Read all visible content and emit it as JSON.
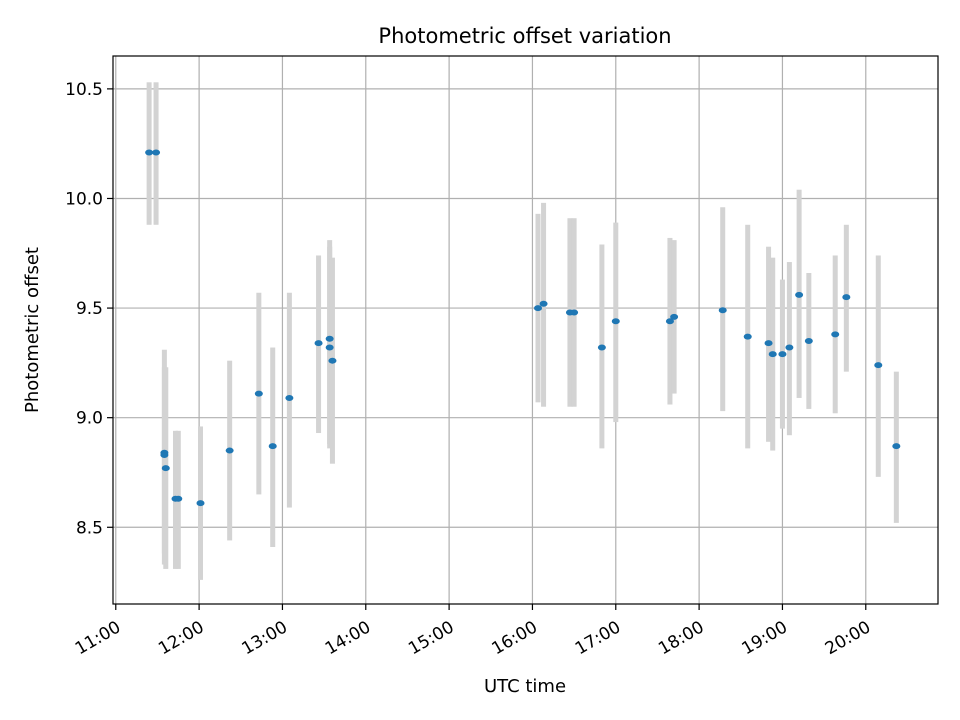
{
  "chart_data": {
    "type": "scatter",
    "title": "Photometric offset variation",
    "xlabel": "UTC time",
    "ylabel": "Photometric offset",
    "xlim": [
      "10:58",
      "20:52"
    ],
    "ylim": [
      8.15,
      10.65
    ],
    "x_ticks": [
      "11:00",
      "12:00",
      "13:00",
      "14:00",
      "15:00",
      "16:00",
      "17:00",
      "18:00",
      "19:00",
      "20:00"
    ],
    "y_ticks": [
      8.5,
      9.0,
      9.5,
      10.0,
      10.5
    ],
    "y_tick_labels": [
      "8.5",
      "9.0",
      "9.5",
      "10.0",
      "10.5"
    ],
    "grid": true,
    "colors": {
      "marker": "#1f77b4",
      "errorbar": "#d3d3d3",
      "grid": "#b0b0b0"
    },
    "series": [
      {
        "marker": "point",
        "error_bars": "vertical",
        "points": [
          {
            "x": "11:24",
            "y": 10.21,
            "lo": 9.88,
            "hi": 10.53
          },
          {
            "x": "11:29",
            "y": 10.21,
            "lo": 9.88,
            "hi": 10.53
          },
          {
            "x": "11:35",
            "y": 8.84,
            "lo": 8.38,
            "hi": 9.31
          },
          {
            "x": "11:35",
            "y": 8.83,
            "lo": 8.33,
            "hi": 9.23
          },
          {
            "x": "11:36",
            "y": 8.77,
            "lo": 8.31,
            "hi": 9.23
          },
          {
            "x": "11:43",
            "y": 8.63,
            "lo": 8.31,
            "hi": 8.94
          },
          {
            "x": "11:45",
            "y": 8.63,
            "lo": 8.31,
            "hi": 8.94
          },
          {
            "x": "12:01",
            "y": 8.61,
            "lo": 8.26,
            "hi": 8.96
          },
          {
            "x": "12:22",
            "y": 8.85,
            "lo": 8.44,
            "hi": 9.26
          },
          {
            "x": "12:43",
            "y": 9.11,
            "lo": 8.65,
            "hi": 9.57
          },
          {
            "x": "12:53",
            "y": 8.87,
            "lo": 8.41,
            "hi": 9.32
          },
          {
            "x": "13:05",
            "y": 9.09,
            "lo": 8.59,
            "hi": 9.57
          },
          {
            "x": "13:26",
            "y": 9.34,
            "lo": 8.93,
            "hi": 9.74
          },
          {
            "x": "13:34",
            "y": 9.36,
            "lo": 8.88,
            "hi": 9.81
          },
          {
            "x": "13:34",
            "y": 9.32,
            "lo": 8.86,
            "hi": 9.78
          },
          {
            "x": "13:36",
            "y": 9.26,
            "lo": 8.79,
            "hi": 9.73
          },
          {
            "x": "16:04",
            "y": 9.5,
            "lo": 9.07,
            "hi": 9.93
          },
          {
            "x": "16:08",
            "y": 9.52,
            "lo": 9.05,
            "hi": 9.98
          },
          {
            "x": "16:27",
            "y": 9.48,
            "lo": 9.05,
            "hi": 9.91
          },
          {
            "x": "16:30",
            "y": 9.48,
            "lo": 9.05,
            "hi": 9.91
          },
          {
            "x": "16:50",
            "y": 9.32,
            "lo": 8.86,
            "hi": 9.79
          },
          {
            "x": "17:00",
            "y": 9.44,
            "lo": 8.98,
            "hi": 9.89
          },
          {
            "x": "17:39",
            "y": 9.44,
            "lo": 9.06,
            "hi": 9.82
          },
          {
            "x": "17:42",
            "y": 9.46,
            "lo": 9.11,
            "hi": 9.81
          },
          {
            "x": "18:17",
            "y": 9.49,
            "lo": 9.03,
            "hi": 9.96
          },
          {
            "x": "18:35",
            "y": 9.37,
            "lo": 8.86,
            "hi": 9.88
          },
          {
            "x": "18:50",
            "y": 9.34,
            "lo": 8.89,
            "hi": 9.78
          },
          {
            "x": "18:53",
            "y": 9.29,
            "lo": 8.85,
            "hi": 9.73
          },
          {
            "x": "19:00",
            "y": 9.29,
            "lo": 8.95,
            "hi": 9.63
          },
          {
            "x": "19:05",
            "y": 9.32,
            "lo": 8.92,
            "hi": 9.71
          },
          {
            "x": "19:12",
            "y": 9.56,
            "lo": 9.09,
            "hi": 10.04
          },
          {
            "x": "19:19",
            "y": 9.35,
            "lo": 9.04,
            "hi": 9.66
          },
          {
            "x": "19:38",
            "y": 9.38,
            "lo": 9.02,
            "hi": 9.74
          },
          {
            "x": "19:46",
            "y": 9.55,
            "lo": 9.21,
            "hi": 9.88
          },
          {
            "x": "20:09",
            "y": 9.24,
            "lo": 8.73,
            "hi": 9.74
          },
          {
            "x": "20:22",
            "y": 8.87,
            "lo": 8.52,
            "hi": 9.21
          }
        ]
      }
    ]
  }
}
